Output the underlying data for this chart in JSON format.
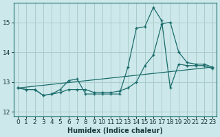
{
  "xlabel": "Humidex (Indice chaleur)",
  "bg_color": "#cce8ea",
  "grid_color": "#aacccc",
  "line_color": "#1a6b6b",
  "xlim": [
    -0.5,
    23.5
  ],
  "ylim": [
    11.85,
    15.65
  ],
  "yticks": [
    12,
    13,
    14,
    15
  ],
  "xticks": [
    0,
    1,
    2,
    3,
    4,
    5,
    6,
    7,
    8,
    9,
    10,
    11,
    12,
    13,
    14,
    15,
    16,
    17,
    18,
    19,
    20,
    21,
    22,
    23
  ],
  "series1_x": [
    0,
    1,
    2,
    3,
    4,
    5,
    6,
    7,
    8,
    9,
    10,
    11,
    12,
    13,
    14,
    15,
    16,
    17,
    18,
    19,
    20,
    21,
    22,
    23
  ],
  "series1_y": [
    12.8,
    12.75,
    12.75,
    12.55,
    12.6,
    12.75,
    13.05,
    13.1,
    12.6,
    12.6,
    12.6,
    12.6,
    12.6,
    13.5,
    14.8,
    14.85,
    15.5,
    15.05,
    12.8,
    13.6,
    13.55,
    13.55,
    13.55,
    13.45
  ],
  "series2_x": [
    0,
    1,
    2,
    3,
    4,
    5,
    6,
    7,
    8,
    9,
    10,
    11,
    12,
    13,
    14,
    15,
    16,
    17,
    18,
    19,
    20,
    21,
    22,
    23
  ],
  "series2_y": [
    12.8,
    12.75,
    12.75,
    12.55,
    12.6,
    12.65,
    12.75,
    12.75,
    12.75,
    12.65,
    12.65,
    12.65,
    12.7,
    12.8,
    13.0,
    13.55,
    13.9,
    14.95,
    15.0,
    14.0,
    13.65,
    13.6,
    13.6,
    13.5
  ],
  "series3_x": [
    0,
    23
  ],
  "series3_y": [
    12.8,
    13.5
  ]
}
